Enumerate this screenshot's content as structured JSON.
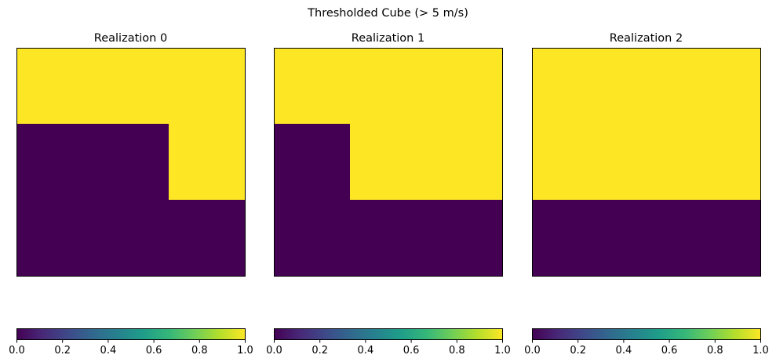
{
  "suptitle": "Thresholded Cube (> 5 m/s)",
  "colors": {
    "low": "#440154",
    "high": "#fde725"
  },
  "colormap": [
    "#440154",
    "#482878",
    "#3e4989",
    "#31688e",
    "#26828e",
    "#1f9e89",
    "#35b779",
    "#6ece58",
    "#b5de2b",
    "#fde725"
  ],
  "chart_data": [
    {
      "type": "heatmap",
      "title": "Realization 0",
      "grid": [
        [
          1,
          1,
          1
        ],
        [
          0,
          0,
          1
        ],
        [
          0,
          0,
          0
        ]
      ],
      "clim": [
        0.0,
        1.0
      ],
      "colorbar_ticks": [
        "0.0",
        "0.2",
        "0.4",
        "0.6",
        "0.8",
        "1.0"
      ],
      "colorbar_orientation": "horizontal"
    },
    {
      "type": "heatmap",
      "title": "Realization 1",
      "grid": [
        [
          1,
          1,
          1
        ],
        [
          0,
          1,
          1
        ],
        [
          0,
          0,
          0
        ]
      ],
      "clim": [
        0.0,
        1.0
      ],
      "colorbar_ticks": [
        "0.0",
        "0.2",
        "0.4",
        "0.6",
        "0.8",
        "1.0"
      ],
      "colorbar_orientation": "horizontal"
    },
    {
      "type": "heatmap",
      "title": "Realization 2",
      "grid": [
        [
          1,
          1,
          1
        ],
        [
          1,
          1,
          1
        ],
        [
          0,
          0,
          0
        ]
      ],
      "clim": [
        0.0,
        1.0
      ],
      "colorbar_ticks": [
        "0.0",
        "0.2",
        "0.4",
        "0.6",
        "0.8",
        "1.0"
      ],
      "colorbar_orientation": "horizontal"
    }
  ]
}
